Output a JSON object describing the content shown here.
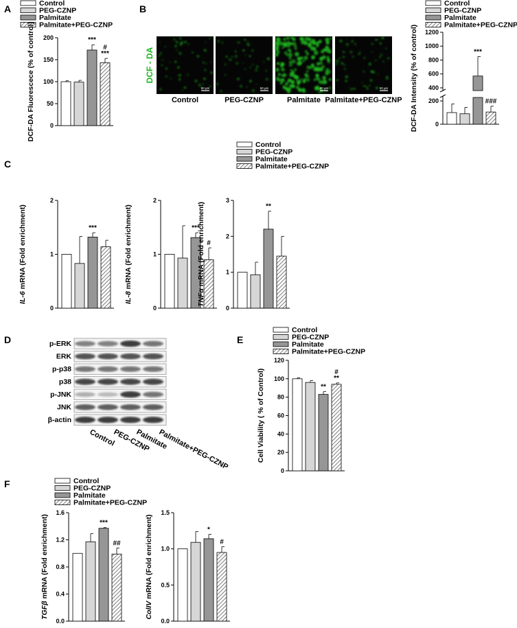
{
  "panel_labels": {
    "A": "A",
    "B": "B",
    "C": "C",
    "D": "D",
    "E": "E",
    "F": "F"
  },
  "legend": [
    "Control",
    "PEG-CZNP",
    "Palmitate",
    "Palmitate+PEG-CZNP"
  ],
  "fills": {
    "control": "#ffffff",
    "peg": "#d6d6d6",
    "palm": "#969696",
    "hatch": "#8a8a8a"
  },
  "panelB": {
    "stain_label": "DCF - DA",
    "image_labels": [
      "Control",
      "PEG-CZNP",
      "Palmitate",
      "Palmitate+PEG-CZNP"
    ],
    "scale_bar": "50 µm",
    "stain_color": "#1db51d"
  },
  "blot": {
    "rows": [
      "p-ERK",
      "ERK",
      "p-p38",
      "p38",
      "p-JNK",
      "JNK",
      "β-actin"
    ],
    "lanes": [
      "Control",
      "PEG-CZNP",
      "Palmitate",
      "Palmitate+PEG-CZNP"
    ]
  },
  "chart_data": [
    {
      "id": "A",
      "type": "bar",
      "ylabel": "DCF-DA Fluorescece (% of control)",
      "ylim": [
        0,
        200
      ],
      "yticks": [
        "0",
        "50",
        "100",
        "150",
        "200"
      ],
      "categories": [
        "Control",
        "PEG-CZNP",
        "Palmitate",
        "Palmitate+PEG-CZNP"
      ],
      "values": [
        100,
        99,
        172,
        143
      ],
      "errors": [
        2,
        4,
        12,
        10
      ],
      "annotations": [
        "",
        "",
        "***",
        "#\n***"
      ]
    },
    {
      "id": "B",
      "type": "bar",
      "ylabel": "DCF-DA Intensity (% of control)",
      "axis_breaks": [
        [
          230,
          380
        ]
      ],
      "yticks": [
        "0",
        "200",
        "400",
        "600",
        "800",
        "1000",
        "1200"
      ],
      "categories": [
        "Control",
        "PEG-CZNP",
        "Palmitate",
        "Palmitate+PEG-CZNP"
      ],
      "values": [
        100,
        90,
        570,
        105
      ],
      "errors": [
        75,
        55,
        280,
        50
      ],
      "annotations": [
        "",
        "",
        "***",
        "###"
      ]
    },
    {
      "id": "C1",
      "type": "bar",
      "ylabel_italic": "IL-6",
      "ylabel": " mRNA (Fold enrichment)",
      "ylim": [
        0,
        2
      ],
      "yticks": [
        "0",
        "1",
        "2"
      ],
      "categories": [
        "Control",
        "PEG-CZNP",
        "Palmitate",
        "Palmitate+PEG-CZNP"
      ],
      "values": [
        1.0,
        0.83,
        1.32,
        1.14
      ],
      "errors": [
        0,
        0.5,
        0.08,
        0.12
      ],
      "annotations": [
        "",
        "",
        "***",
        ""
      ]
    },
    {
      "id": "C2",
      "type": "bar",
      "ylabel_italic": "IL-8",
      "ylabel": " mRNA (Fold enrichment)",
      "ylim": [
        0,
        2
      ],
      "yticks": [
        "0",
        "1",
        "2"
      ],
      "categories": [
        "Control",
        "PEG-CZNP",
        "Palmitate",
        "Palmitate+PEG-CZNP"
      ],
      "values": [
        1.0,
        0.93,
        1.31,
        0.9
      ],
      "errors": [
        0,
        0.6,
        0.09,
        0.22
      ],
      "annotations": [
        "",
        "",
        "***",
        "#"
      ]
    },
    {
      "id": "C3",
      "type": "bar",
      "ylabel_italic": "TNFα",
      "ylabel": " mRNA (Fold enrichment)",
      "ylim": [
        0,
        3
      ],
      "yticks": [
        "0",
        "1",
        "2",
        "3"
      ],
      "categories": [
        "Control",
        "PEG-CZNP",
        "Palmitate",
        "Palmitate+PEG-CZNP"
      ],
      "values": [
        1.0,
        0.93,
        2.2,
        1.45
      ],
      "errors": [
        0,
        0.35,
        0.5,
        0.55
      ],
      "annotations": [
        "",
        "",
        "**",
        ""
      ]
    },
    {
      "id": "E",
      "type": "bar",
      "ylabel": "Cell Viability ( % of Control)",
      "ylim": [
        0,
        120
      ],
      "yticks": [
        "0",
        "20",
        "40",
        "60",
        "80",
        "100",
        "120"
      ],
      "categories": [
        "Control",
        "PEG-CZNP",
        "Palmitate",
        "Palmitate+PEG-CZNP"
      ],
      "values": [
        100,
        96,
        83,
        94
      ],
      "errors": [
        1,
        2,
        3,
        1.5
      ],
      "annotations": [
        "",
        "",
        "**",
        "#\n**"
      ]
    },
    {
      "id": "F1",
      "type": "bar",
      "ylabel_italic": "TGFβ",
      "ylabel": " mRNA (Fold enrichment)",
      "ylim": [
        0,
        1.6
      ],
      "yticks": [
        "0.0",
        "0.4",
        "0.8",
        "1.2",
        "1.6"
      ],
      "categories": [
        "Control",
        "PEG-CZNP",
        "Palmitate",
        "Palmitate+PEG-CZNP"
      ],
      "values": [
        1.0,
        1.17,
        1.37,
        0.99
      ],
      "errors": [
        0,
        0.12,
        0.01,
        0.09
      ],
      "annotations": [
        "",
        "",
        "***",
        "##"
      ]
    },
    {
      "id": "F2",
      "type": "bar",
      "ylabel_italic": "ColIV",
      "ylabel": " mRNA (Fold enrichment)",
      "ylim": [
        0,
        1.5
      ],
      "yticks": [
        "0.0",
        "0.5",
        "1.0",
        "1.5"
      ],
      "categories": [
        "Control",
        "PEG-CZNP",
        "Palmitate",
        "Palmitate+PEG-CZNP"
      ],
      "values": [
        1.0,
        1.09,
        1.14,
        0.95
      ],
      "errors": [
        0,
        0.15,
        0.06,
        0.08
      ],
      "annotations": [
        "",
        "",
        "*",
        "#"
      ]
    }
  ]
}
